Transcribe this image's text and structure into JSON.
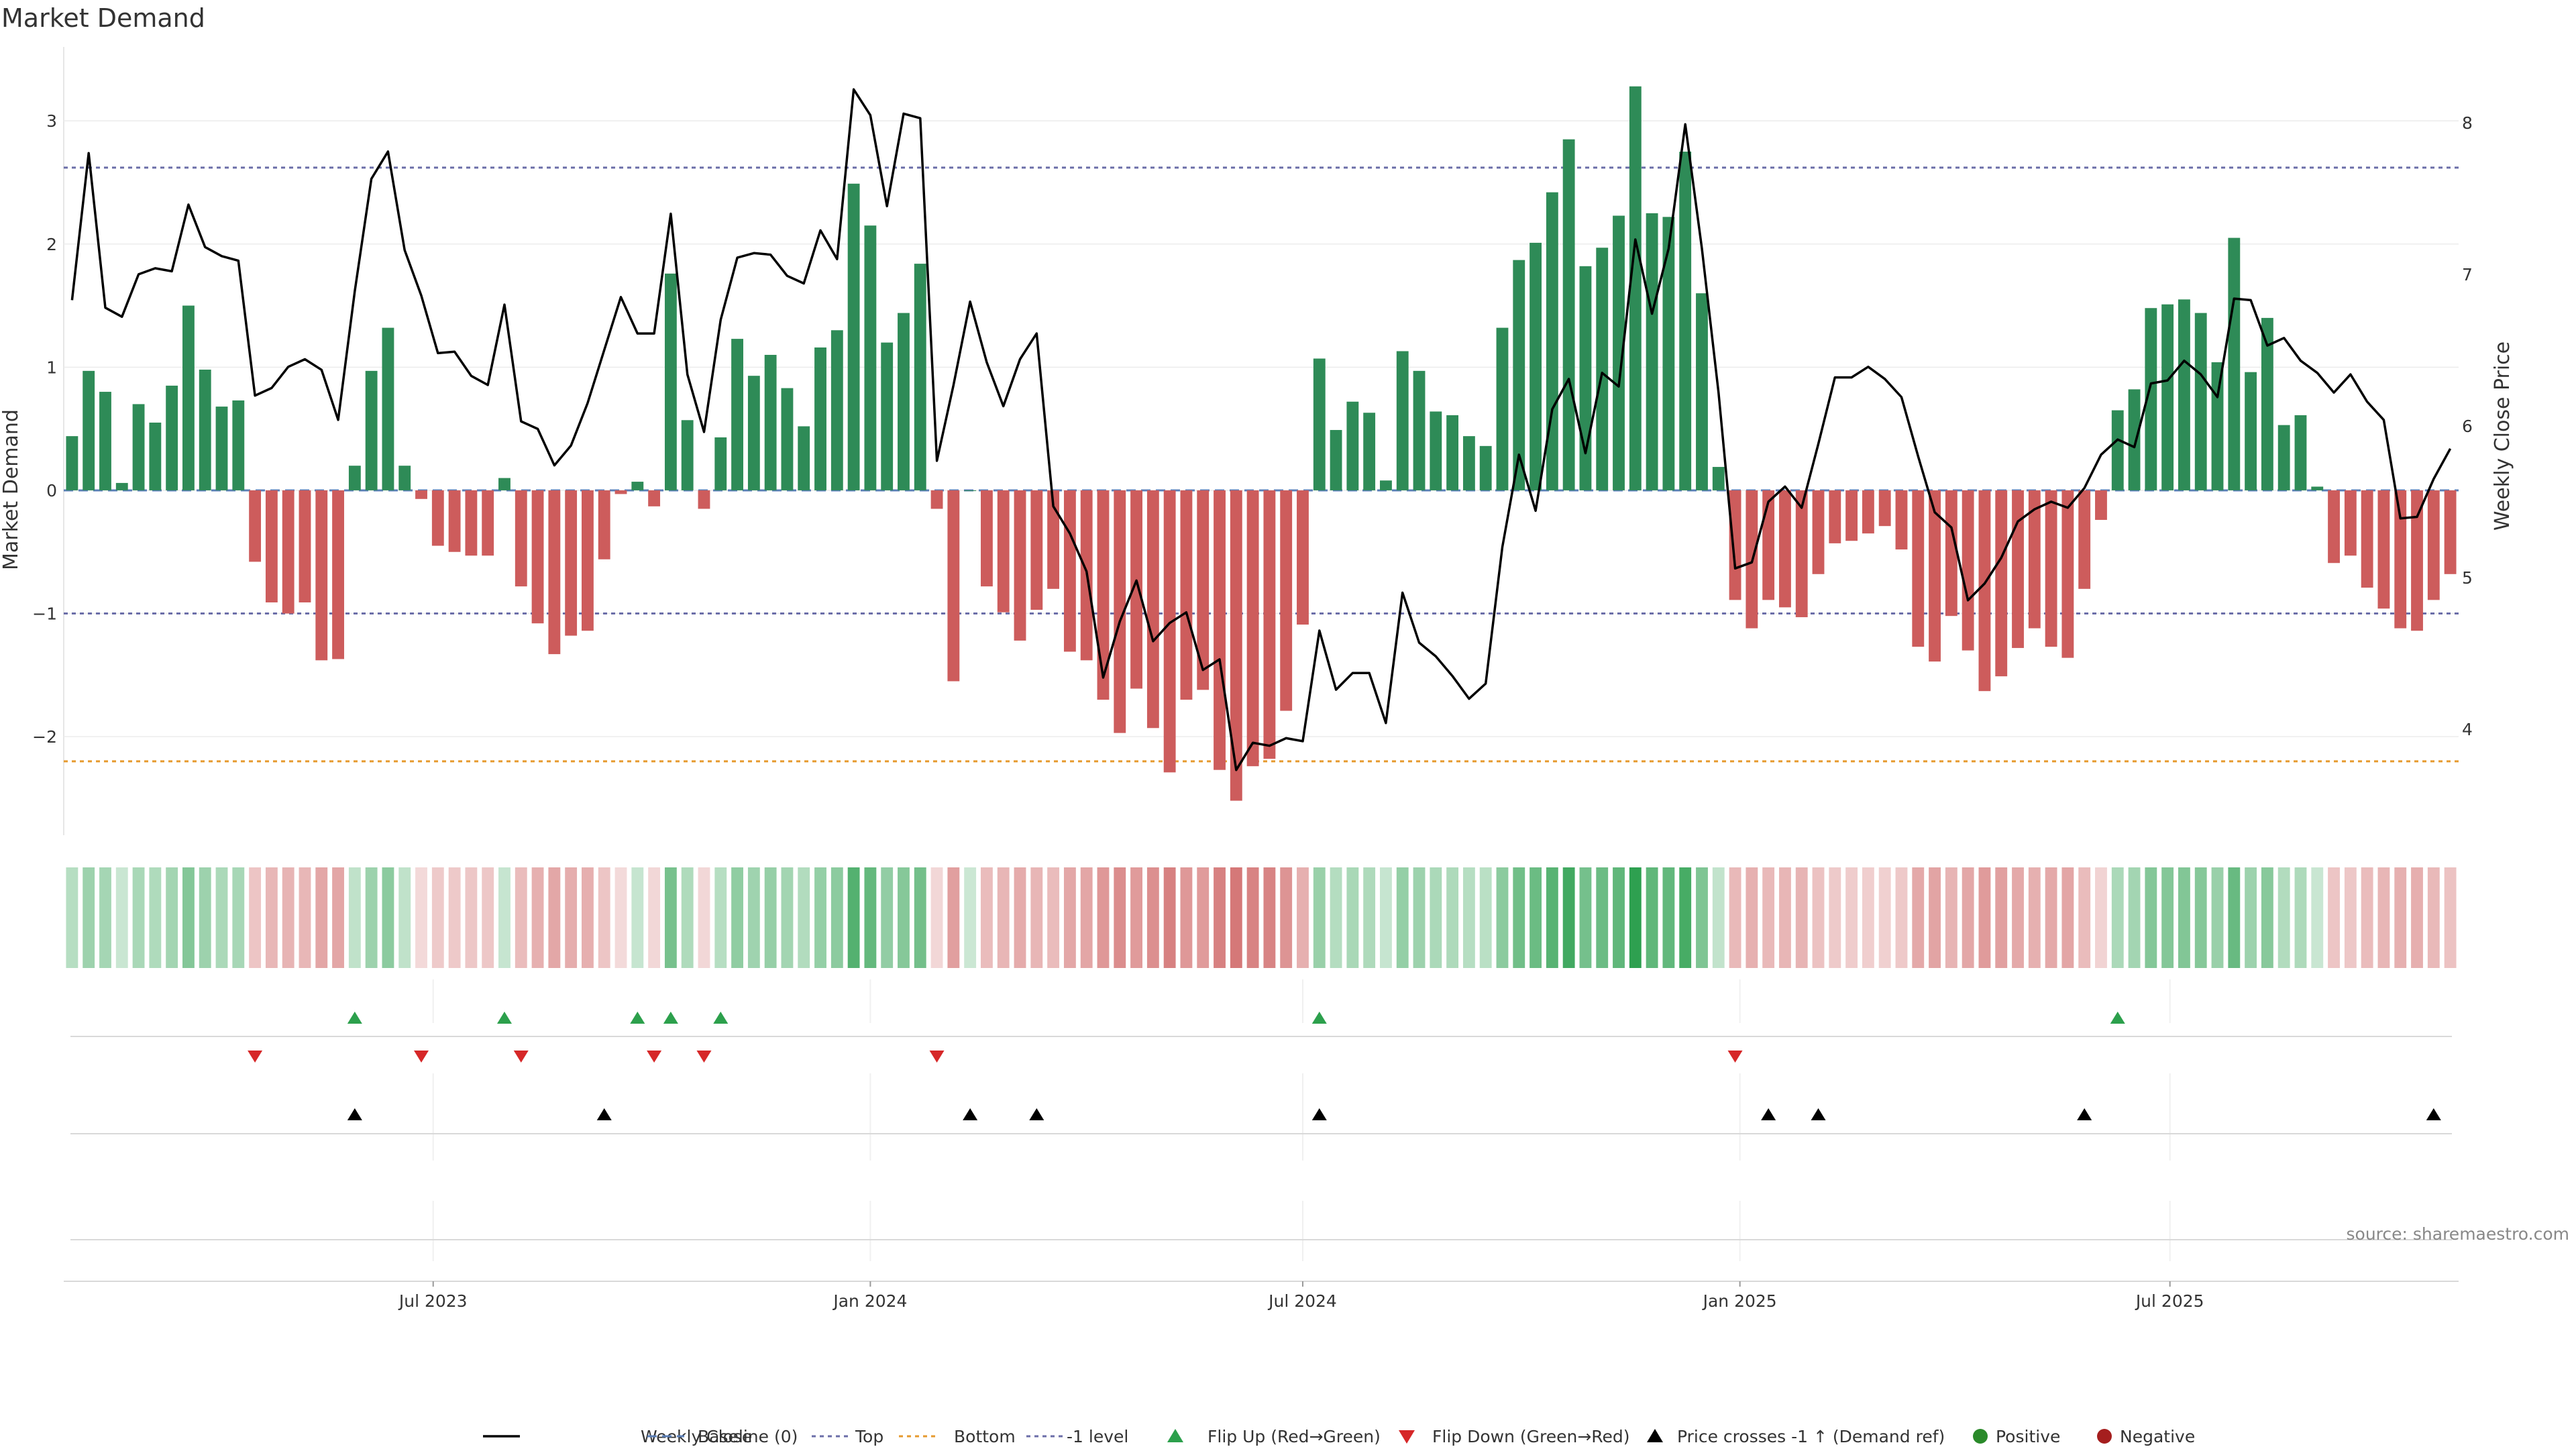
{
  "chart_data": {
    "type": "bar",
    "title": "Market Demand",
    "ylabel": "Market Demand",
    "y2label": "Weekly Close Price",
    "ylim": [
      -2.8,
      3.6
    ],
    "y2lim": [
      3.3,
      8.5
    ],
    "yticks": [
      3,
      2,
      1,
      0,
      -1,
      -2
    ],
    "ytick_labels": [
      "3",
      "2",
      "1",
      "0",
      "−1",
      "−2"
    ],
    "y2ticks": [
      8,
      7,
      6,
      5,
      4
    ],
    "x_dates": {
      "start": "2023-01-30",
      "step_days": 7
    },
    "xtick_labels": [
      "Jul 2023",
      "Jan 2024",
      "Jul 2024",
      "Jan 2025",
      "Jul 2025"
    ],
    "xtick_dates": [
      "2023-07-01",
      "2024-01-01",
      "2024-07-01",
      "2025-01-01",
      "2025-07-01"
    ],
    "reference_lines": {
      "baseline": 0,
      "top": 2.62,
      "bottom": -2.2,
      "minus1": -1
    },
    "demand": [
      0.44,
      0.97,
      0.8,
      0.06,
      0.7,
      0.55,
      0.85,
      1.5,
      0.98,
      0.68,
      0.73,
      -0.58,
      -0.91,
      -1.0,
      -0.91,
      -1.38,
      -1.37,
      0.2,
      0.97,
      1.32,
      0.2,
      -0.07,
      -0.45,
      -0.5,
      -0.53,
      -0.53,
      0.1,
      -0.78,
      -1.08,
      -1.33,
      -1.18,
      -1.14,
      -0.56,
      -0.03,
      0.07,
      -0.13,
      1.76,
      0.57,
      -0.15,
      0.43,
      1.23,
      0.93,
      1.1,
      0.83,
      0.52,
      1.16,
      1.3,
      2.49,
      2.15,
      1.2,
      1.44,
      1.84,
      -0.15,
      -1.55,
      0.0,
      -0.78,
      -0.99,
      -1.22,
      -0.97,
      -0.8,
      -1.31,
      -1.38,
      -1.7,
      -1.97,
      -1.61,
      -1.93,
      -2.29,
      -1.7,
      -1.62,
      -2.27,
      -2.52,
      -2.24,
      -2.18,
      -1.79,
      -1.09,
      1.07,
      0.49,
      0.72,
      0.63,
      0.08,
      1.13,
      0.97,
      0.64,
      0.61,
      0.44,
      0.36,
      1.32,
      1.87,
      2.01,
      2.42,
      2.85,
      1.82,
      1.97,
      2.23,
      3.28,
      2.25,
      2.22,
      2.75,
      1.6,
      0.19,
      -0.89,
      -1.12,
      -0.89,
      -0.95,
      -1.03,
      -0.68,
      -0.43,
      -0.41,
      -0.35,
      -0.29,
      -0.48,
      -1.27,
      -1.39,
      -1.02,
      -1.3,
      -1.63,
      -1.51,
      -1.28,
      -1.12,
      -1.27,
      -1.36,
      -0.8,
      -0.24,
      0.65,
      0.82,
      1.48,
      1.51,
      1.55,
      1.44,
      1.04,
      2.05,
      0.96,
      1.4,
      0.53,
      0.61,
      0.03,
      -0.59,
      -0.53,
      -0.79,
      -0.96,
      -1.12,
      -1.14,
      -0.89,
      -0.68
    ],
    "close": [
      6.83,
      7.8,
      6.78,
      6.72,
      7.0,
      7.04,
      7.02,
      7.46,
      7.18,
      7.12,
      7.09,
      6.2,
      6.25,
      6.39,
      6.44,
      6.37,
      6.04,
      6.89,
      7.63,
      7.81,
      7.16,
      6.86,
      6.48,
      6.49,
      6.33,
      6.27,
      6.8,
      6.03,
      5.98,
      5.74,
      5.87,
      6.15,
      6.5,
      6.85,
      6.61,
      6.61,
      7.4,
      6.34,
      5.96,
      6.7,
      7.11,
      7.14,
      7.13,
      6.99,
      6.94,
      7.29,
      7.1,
      8.22,
      8.05,
      7.45,
      8.06,
      8.03,
      5.77,
      6.27,
      6.82,
      6.42,
      6.13,
      6.44,
      6.61,
      5.47,
      5.29,
      5.04,
      4.34,
      4.71,
      4.98,
      4.58,
      4.7,
      4.77,
      4.39,
      4.46,
      3.73,
      3.91,
      3.89,
      3.94,
      3.92,
      4.65,
      4.26,
      4.37,
      4.37,
      4.04,
      4.9,
      4.57,
      4.48,
      4.35,
      4.2,
      4.3,
      5.2,
      5.81,
      5.44,
      6.11,
      6.31,
      5.82,
      6.35,
      6.26,
      7.23,
      6.74,
      7.17,
      7.99,
      7.17,
      6.22,
      5.06,
      5.1,
      5.5,
      5.6,
      5.46,
      5.88,
      6.32,
      6.32,
      6.39,
      6.31,
      6.19,
      5.8,
      5.43,
      5.33,
      4.85,
      4.96,
      5.13,
      5.37,
      5.45,
      5.5,
      5.46,
      5.59,
      5.81,
      5.91,
      5.86,
      6.28,
      6.3,
      6.43,
      6.34,
      6.19,
      6.84,
      6.83,
      6.53,
      6.58,
      6.43,
      6.35,
      6.22,
      6.34,
      6.16,
      6.04,
      5.39,
      5.4,
      5.65,
      5.85
    ]
  },
  "source": "source: sharemaestro.com",
  "colors": {
    "positive": "#2e8b57",
    "negative": "#cd5c5c",
    "price": "#000000",
    "top": "#6b6ea8",
    "bottom": "#e69a2e",
    "flip_up": "#2ca04c",
    "flip_down": "#d62728"
  },
  "legend": [
    {
      "label": "Weekly Close",
      "icon": "solid-line",
      "color": "#000000"
    },
    {
      "label": "Baseline (0)",
      "icon": "dashed-line",
      "color": "#5b7fb8"
    },
    {
      "label": "Top",
      "icon": "dotted-line",
      "color": "#6b6ea8"
    },
    {
      "label": "Bottom",
      "icon": "dotted-line",
      "color": "#e69a2e"
    },
    {
      "label": "-1 level",
      "icon": "dotted-line",
      "color": "#6b6ea8"
    },
    {
      "label": "Flip Up (Red→Green)",
      "icon": "triangle-up",
      "color": "#2ca04c"
    },
    {
      "label": "Flip Down (Green→Red)",
      "icon": "triangle-down",
      "color": "#d62728"
    },
    {
      "label": "Price crosses -1 ↑ (Demand ref)",
      "icon": "triangle-up",
      "color": "#000000"
    },
    {
      "label": "Positive",
      "icon": "dot",
      "color": "#2a8a2a"
    },
    {
      "label": "Negative",
      "icon": "dot",
      "color": "#a51e1e"
    }
  ]
}
